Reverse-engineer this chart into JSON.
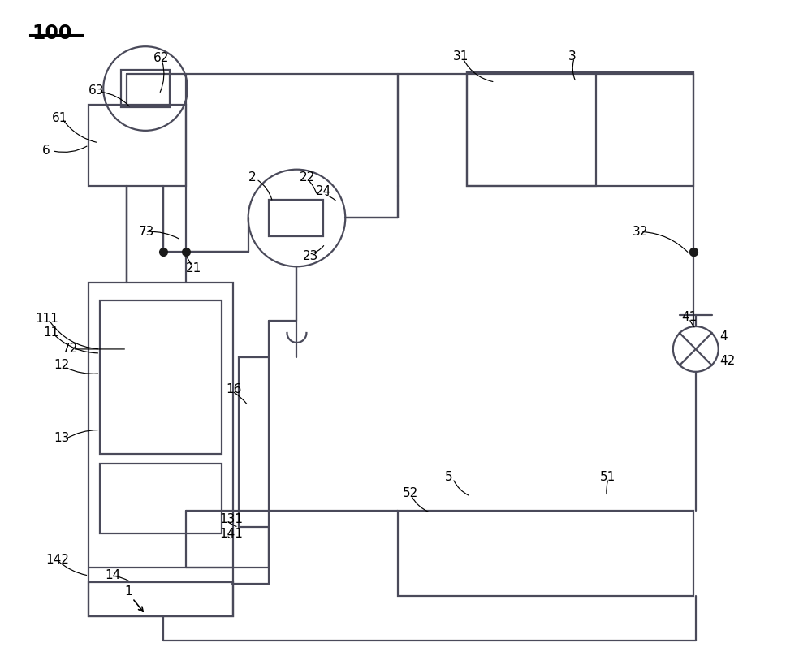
{
  "bg_color": "#ffffff",
  "line_color": "#4a4a5a",
  "line_width": 1.6,
  "thin_lw": 0.9,
  "dot_color": "#1a1a1a",
  "dot_size": 7
}
